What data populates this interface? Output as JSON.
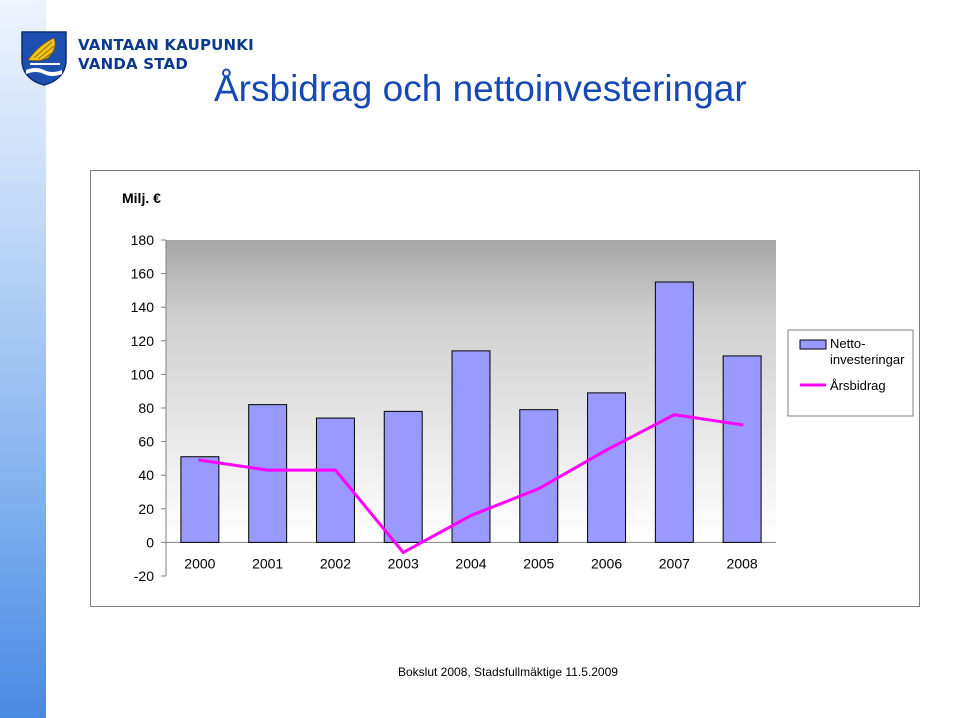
{
  "header": {
    "org_line1": "VANTAAN KAUPUNKI",
    "org_line2": "VANDA STAD",
    "title": "Årsbidrag och nettoinvesteringar"
  },
  "footer": {
    "text": "Bokslut 2008, Stadsfullmäktige 11.5.2009"
  },
  "colors": {
    "bar": "#9999ff",
    "line": "#ff00ff",
    "title": "#1749b5",
    "plot_bg": "#c0c0c0"
  },
  "chart_data": {
    "type": "bar",
    "unit_label": "Milj. €",
    "categories": [
      "2000",
      "2001",
      "2002",
      "2003",
      "2004",
      "2005",
      "2006",
      "2007",
      "2008"
    ],
    "series": [
      {
        "name": "Netto-\ninvesteringar",
        "type": "bar",
        "values": [
          51,
          82,
          74,
          78,
          114,
          79,
          89,
          155,
          111
        ]
      },
      {
        "name": "Årsbidrag",
        "type": "line",
        "values": [
          49,
          43,
          43,
          -6,
          16,
          32,
          55,
          76,
          70
        ]
      }
    ],
    "ylim": [
      -20,
      180
    ],
    "yticks": [
      180,
      160,
      140,
      120,
      100,
      80,
      60,
      40,
      20,
      0,
      -20
    ],
    "legend_position": "right"
  }
}
